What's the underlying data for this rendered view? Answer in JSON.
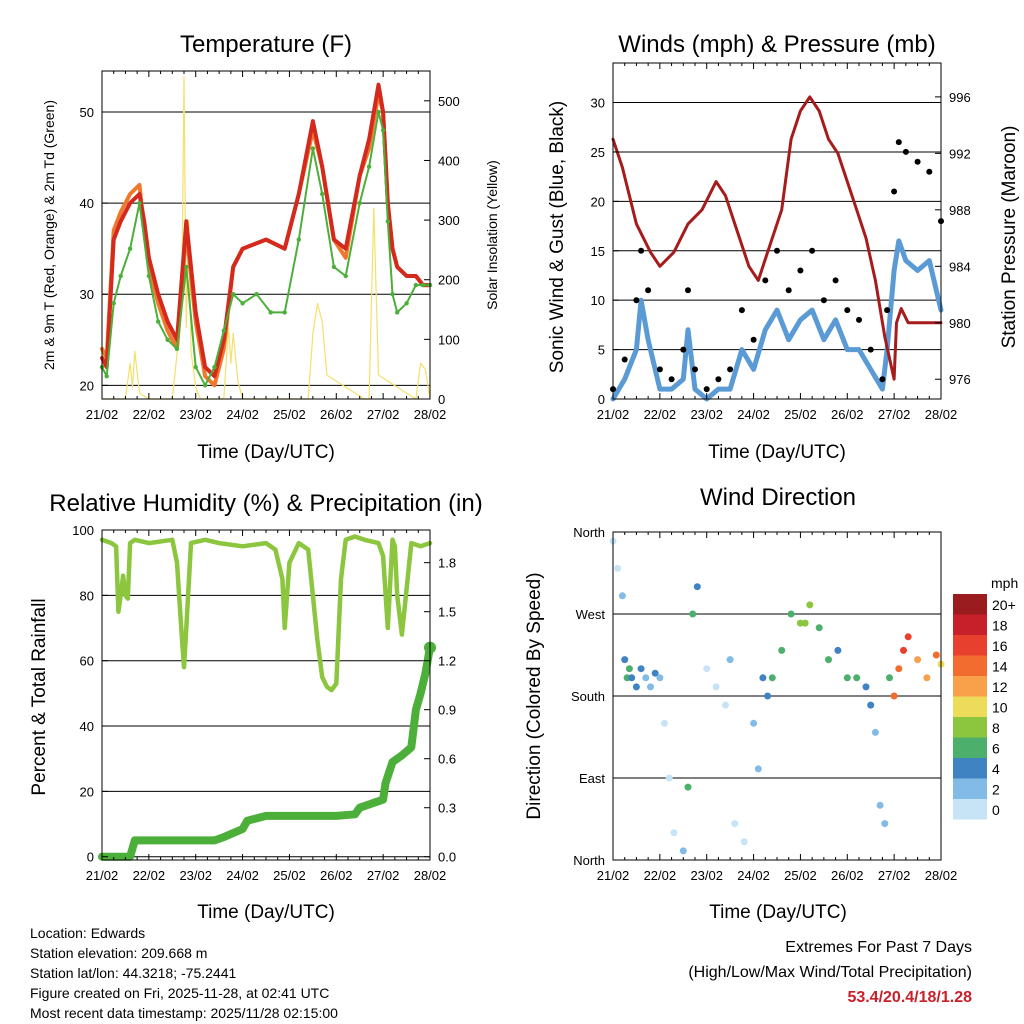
{
  "station": {
    "location": "Location: Edwards",
    "elevation": "Station elevation: 209.668 m",
    "latlon": "Station lat/lon: 44.3218; -75.2441",
    "created": "Figure created on Fri, 2025-11-28, at 02:41 UTC",
    "recent": "Most recent data timestamp: 2025/11/28 02:15:00"
  },
  "extremes": {
    "title": "Extremes For Past 7 Days",
    "subtitle": "(High/Low/Max Wind/Total Precipitation)",
    "values": "53.4/20.4/18/1.28"
  },
  "colors": {
    "t2m": "#d42a1e",
    "t9m": "#f0782e",
    "td": "#4caf3a",
    "solar": "#f5e06a",
    "wind": "#5b9bd5",
    "gust": "#000000",
    "pressure": "#a61c1c",
    "rh": "#8cc63f",
    "precip": "#4caf3a"
  },
  "chart_data": [
    {
      "id": "temperature",
      "type": "line",
      "title": "Temperature (F)",
      "xlabel": "Time (Day/UTC)",
      "ylabel": "2m & 9m T (Red, Orange) & 2m Td (Green)",
      "y2label": "Solar Insolation (Yellow)",
      "xticks": [
        "21/02",
        "22/02",
        "23/02",
        "24/02",
        "25/02",
        "26/02",
        "27/02",
        "28/02"
      ],
      "xlim": [
        0,
        7
      ],
      "ylim": [
        18.5,
        54.5
      ],
      "yticks": [
        20,
        30,
        40,
        50
      ],
      "y2lim": [
        0,
        550
      ],
      "y2ticks": [
        0,
        100,
        200,
        300,
        400,
        500
      ],
      "series": [
        {
          "name": "2m T",
          "axis": "y",
          "color": "#d42a1e",
          "x": [
            0,
            0.1,
            0.25,
            0.4,
            0.6,
            0.8,
            0.9,
            1.0,
            1.2,
            1.4,
            1.6,
            1.8,
            2.0,
            2.2,
            2.4,
            2.6,
            2.8,
            3.0,
            3.5,
            3.9,
            4.2,
            4.5,
            4.7,
            4.95,
            5.2,
            5.5,
            5.7,
            5.9,
            6.0,
            6.05,
            6.1,
            6.2,
            6.3,
            6.5,
            6.7,
            6.85,
            7.0
          ],
          "y": [
            23,
            22,
            36,
            38,
            40,
            41,
            38,
            34,
            30,
            27,
            25,
            38,
            28,
            22,
            21,
            25,
            33,
            35,
            36,
            35,
            41,
            49,
            44,
            36,
            35,
            43,
            47,
            53,
            50,
            45,
            40,
            35,
            33,
            32,
            32,
            31,
            31
          ]
        },
        {
          "name": "9m T",
          "axis": "y",
          "color": "#f0782e",
          "x": [
            0,
            0.1,
            0.25,
            0.4,
            0.6,
            0.8,
            0.9,
            1.0,
            1.2,
            1.4,
            1.6,
            1.8,
            2.0,
            2.2,
            2.4,
            2.6,
            2.8,
            3.0,
            3.5,
            3.9,
            4.2,
            4.5,
            4.7,
            4.95,
            5.2,
            5.5,
            5.7,
            5.9,
            6.0,
            6.05,
            6.1,
            6.2,
            6.3,
            6.5,
            6.7,
            6.85,
            7.0
          ],
          "y": [
            24,
            23,
            37,
            39,
            41,
            42,
            37,
            33,
            29,
            26,
            24,
            37,
            27,
            21,
            20,
            24,
            33,
            35,
            36,
            35,
            41,
            48,
            44,
            36,
            34,
            43,
            46,
            52,
            50,
            45,
            40,
            35,
            33,
            32,
            32,
            31,
            31
          ]
        },
        {
          "name": "2m Td",
          "axis": "y",
          "color": "#4caf3a",
          "x": [
            0,
            0.1,
            0.25,
            0.4,
            0.6,
            0.8,
            1.0,
            1.2,
            1.4,
            1.6,
            1.8,
            2.0,
            2.2,
            2.4,
            2.6,
            2.8,
            3.0,
            3.3,
            3.6,
            3.9,
            4.2,
            4.5,
            4.7,
            4.95,
            5.2,
            5.5,
            5.7,
            5.9,
            6.0,
            6.1,
            6.2,
            6.3,
            6.5,
            6.7,
            6.85,
            7.0
          ],
          "y": [
            22,
            21,
            29,
            32,
            35,
            40,
            32,
            27,
            25,
            24,
            33,
            22,
            20,
            22,
            26,
            30,
            29,
            30,
            28,
            28,
            36,
            46,
            41,
            33,
            32,
            40,
            44,
            50,
            48,
            38,
            30,
            28,
            29,
            31,
            31,
            31
          ]
        },
        {
          "name": "Solar Insolation",
          "axis": "y2",
          "color": "#f5e06a",
          "x": [
            0,
            0.5,
            0.6,
            0.65,
            0.7,
            0.8,
            1.0,
            1.5,
            1.7,
            1.75,
            1.8,
            1.85,
            1.9,
            2.0,
            2.1,
            2.6,
            2.7,
            2.75,
            2.8,
            2.9,
            3.0,
            4.4,
            4.5,
            4.6,
            4.7,
            4.8,
            5.6,
            5.7,
            5.75,
            5.8,
            5.9,
            6.7,
            6.8,
            6.9,
            7.0
          ],
          "y": [
            0,
            0,
            60,
            20,
            80,
            10,
            0,
            0,
            150,
            540,
            120,
            300,
            80,
            20,
            0,
            0,
            120,
            60,
            110,
            30,
            0,
            0,
            110,
            160,
            130,
            40,
            0,
            0,
            160,
            320,
            40,
            0,
            60,
            50,
            0
          ]
        }
      ]
    },
    {
      "id": "winds",
      "type": "scatter",
      "title": "Winds (mph) & Pressure (mb)",
      "xlabel": "Time (Day/UTC)",
      "ylabel": "Sonic Wind & Gust (Blue, Black)",
      "y2label": "Station Pressure (Maroon)",
      "xticks": [
        "21/02",
        "22/02",
        "23/02",
        "24/02",
        "25/02",
        "26/02",
        "27/02",
        "28/02"
      ],
      "xlim": [
        0,
        7
      ],
      "ylim": [
        0,
        34
      ],
      "yticks": [
        0,
        5,
        10,
        15,
        20,
        25,
        30
      ],
      "y2lim": [
        974.6,
        998.4
      ],
      "y2ticks": [
        976,
        980,
        984,
        988,
        992,
        996
      ],
      "series": [
        {
          "name": "Gust",
          "axis": "y",
          "color": "#000000",
          "x": [
            0,
            0.25,
            0.5,
            0.6,
            0.75,
            1.0,
            1.25,
            1.5,
            1.6,
            1.75,
            2.0,
            2.25,
            2.5,
            2.75,
            3.0,
            3.25,
            3.5,
            3.75,
            4.0,
            4.25,
            4.5,
            4.75,
            5.0,
            5.25,
            5.5,
            5.75,
            5.85,
            6.0,
            6.1,
            6.25,
            6.5,
            6.75,
            7.0
          ],
          "y": [
            1,
            4,
            10,
            15,
            11,
            3,
            2,
            5,
            11,
            3,
            1,
            2,
            3,
            9,
            6,
            12,
            15,
            11,
            13,
            15,
            10,
            12,
            9,
            8,
            5,
            2,
            9,
            21,
            26,
            25,
            24,
            23,
            18
          ]
        },
        {
          "name": "Wind",
          "axis": "y",
          "color": "#5b9bd5",
          "x": [
            0,
            0.25,
            0.5,
            0.6,
            0.75,
            1.0,
            1.25,
            1.5,
            1.6,
            1.75,
            2.0,
            2.25,
            2.5,
            2.75,
            3.0,
            3.25,
            3.5,
            3.75,
            4.0,
            4.25,
            4.5,
            4.75,
            5.0,
            5.25,
            5.5,
            5.75,
            5.85,
            6.0,
            6.1,
            6.25,
            6.5,
            6.75,
            7.0
          ],
          "y": [
            0,
            2,
            5,
            10,
            6,
            1,
            1,
            2,
            7,
            1,
            0,
            1,
            1,
            5,
            3,
            7,
            9,
            6,
            8,
            9,
            6,
            8,
            5,
            5,
            3,
            1,
            5,
            13,
            16,
            14,
            13,
            14,
            9
          ]
        },
        {
          "name": "Pressure",
          "axis": "y2",
          "color": "#a61c1c",
          "x": [
            0,
            0.2,
            0.5,
            0.8,
            1.0,
            1.3,
            1.6,
            1.9,
            2.2,
            2.4,
            2.6,
            2.9,
            3.1,
            3.3,
            3.6,
            3.8,
            4.0,
            4.2,
            4.4,
            4.6,
            4.8,
            5.0,
            5.2,
            5.4,
            5.6,
            5.8,
            6.0,
            6.05,
            6.15,
            6.3,
            6.6,
            7.0
          ],
          "y": [
            993,
            991,
            987,
            985,
            984,
            985,
            987,
            988,
            990,
            989,
            987,
            984,
            983,
            985,
            988,
            993,
            995,
            996,
            995,
            993,
            992,
            990,
            988,
            986,
            983,
            979,
            976,
            980,
            981,
            980,
            980,
            980
          ]
        }
      ]
    },
    {
      "id": "humidity",
      "type": "line",
      "title": "Relative Humidity (%) & Precipitation (in)",
      "xlabel": "Time (Day/UTC)",
      "ylabel": "Percent & Total Rainfall",
      "xticks": [
        "21/02",
        "22/02",
        "23/02",
        "24/02",
        "25/02",
        "26/02",
        "27/02",
        "28/02"
      ],
      "xlim": [
        0,
        7
      ],
      "ylim": [
        -1,
        100
      ],
      "yticks": [
        0,
        20,
        40,
        60,
        80,
        100
      ],
      "y2lim": [
        -0.02,
        2.0
      ],
      "y2ticks": [
        "0.0",
        "0.3",
        "0.6",
        "0.9",
        "1.2",
        "1.5",
        "1.8"
      ],
      "series": [
        {
          "name": "Relative Humidity",
          "axis": "y",
          "color": "#8cc63f",
          "x": [
            0,
            0.2,
            0.3,
            0.35,
            0.4,
            0.45,
            0.5,
            0.55,
            0.6,
            0.7,
            1.0,
            1.5,
            1.6,
            1.7,
            1.75,
            1.8,
            1.9,
            2.2,
            2.5,
            3.0,
            3.5,
            3.7,
            3.85,
            3.9,
            4.0,
            4.2,
            4.4,
            4.6,
            4.7,
            4.8,
            4.9,
            5.0,
            5.1,
            5.2,
            5.4,
            5.6,
            5.9,
            6.0,
            6.1,
            6.2,
            6.25,
            6.3,
            6.4,
            6.6,
            6.8,
            7.0
          ],
          "y": [
            97,
            96,
            95,
            75,
            80,
            86,
            80,
            79,
            96,
            97,
            96,
            97,
            90,
            68,
            58,
            70,
            96,
            97,
            96,
            95,
            96,
            94,
            85,
            70,
            90,
            96,
            94,
            66,
            55,
            52,
            51,
            53,
            85,
            97,
            98,
            97,
            96,
            92,
            70,
            97,
            95,
            80,
            68,
            96,
            95,
            96
          ]
        },
        {
          "name": "Total Precipitation",
          "axis": "y2",
          "color": "#4caf3a",
          "x": [
            0,
            0.6,
            0.7,
            1.0,
            1.5,
            2.0,
            2.4,
            2.6,
            3.0,
            3.1,
            3.5,
            3.8,
            4.0,
            4.5,
            5.0,
            5.4,
            5.5,
            5.8,
            6.0,
            6.05,
            6.2,
            6.4,
            6.6,
            6.7,
            6.8,
            6.9,
            7.0
          ],
          "y": [
            0,
            0,
            0.1,
            0.1,
            0.1,
            0.1,
            0.1,
            0.12,
            0.17,
            0.22,
            0.25,
            0.25,
            0.25,
            0.25,
            0.25,
            0.26,
            0.3,
            0.33,
            0.35,
            0.45,
            0.58,
            0.62,
            0.67,
            0.9,
            1.0,
            1.12,
            1.28
          ]
        }
      ]
    },
    {
      "id": "wind_direction",
      "type": "scatter",
      "title": "Wind Direction",
      "xlabel": "Time (Day/UTC)",
      "ylabel": "Direction (Colored By Speed)",
      "xticks": [
        "21/02",
        "22/02",
        "23/02",
        "24/02",
        "25/02",
        "26/02",
        "27/02",
        "28/02"
      ],
      "xlim": [
        0,
        7
      ],
      "ylim": [
        0,
        360
      ],
      "ytick_values": [
        0,
        90,
        180,
        270,
        360
      ],
      "yticks": [
        "North",
        "East",
        "South",
        "West",
        "North"
      ],
      "colorbar_title": "mph",
      "colorbar_labels": [
        "20+",
        "18",
        "16",
        "14",
        "12",
        "10",
        "8",
        "6",
        "4",
        "2",
        "0"
      ],
      "colorbar_colors": [
        "#9a1c1f",
        "#c8202a",
        "#e8402e",
        "#f26b2f",
        "#f9a04a",
        "#ecdc5a",
        "#8cc63f",
        "#4caf6b",
        "#3f83c3",
        "#82bce6",
        "#c7e4f7"
      ],
      "series": [
        {
          "name": "Direction",
          "x": [
            0,
            0.1,
            0.2,
            0.25,
            0.3,
            0.35,
            0.4,
            0.5,
            0.6,
            0.7,
            0.8,
            0.9,
            1.0,
            1.1,
            1.2,
            1.3,
            1.5,
            1.6,
            1.7,
            1.8,
            2.0,
            2.2,
            2.4,
            2.5,
            2.6,
            2.8,
            3.0,
            3.1,
            3.2,
            3.3,
            3.4,
            3.6,
            3.8,
            4.0,
            4.1,
            4.2,
            4.4,
            4.6,
            4.8,
            5.0,
            5.2,
            5.4,
            5.5,
            5.6,
            5.7,
            5.8,
            5.9,
            6.0,
            6.1,
            6.2,
            6.3,
            6.5,
            6.7,
            6.9,
            7.0
          ],
          "y": [
            350,
            320,
            290,
            220,
            200,
            210,
            200,
            190,
            210,
            200,
            190,
            205,
            200,
            150,
            90,
            30,
            10,
            80,
            270,
            300,
            210,
            190,
            170,
            220,
            40,
            20,
            150,
            100,
            200,
            180,
            200,
            230,
            270,
            260,
            260,
            280,
            255,
            220,
            230,
            200,
            200,
            190,
            170,
            140,
            60,
            40,
            200,
            180,
            210,
            230,
            245,
            220,
            200,
            225,
            215
          ],
          "speed": [
            1,
            1,
            2,
            5,
            7,
            6,
            5,
            4,
            5,
            3,
            2,
            4,
            3,
            1,
            1,
            1,
            2,
            6,
            7,
            4,
            1,
            1,
            1,
            2,
            1,
            1,
            2,
            3,
            5,
            4,
            6,
            7,
            7,
            8,
            9,
            8,
            7,
            6,
            5,
            6,
            6,
            5,
            4,
            3,
            2,
            2,
            6,
            14,
            15,
            16,
            17,
            13,
            12,
            14,
            10
          ]
        }
      ]
    }
  ]
}
